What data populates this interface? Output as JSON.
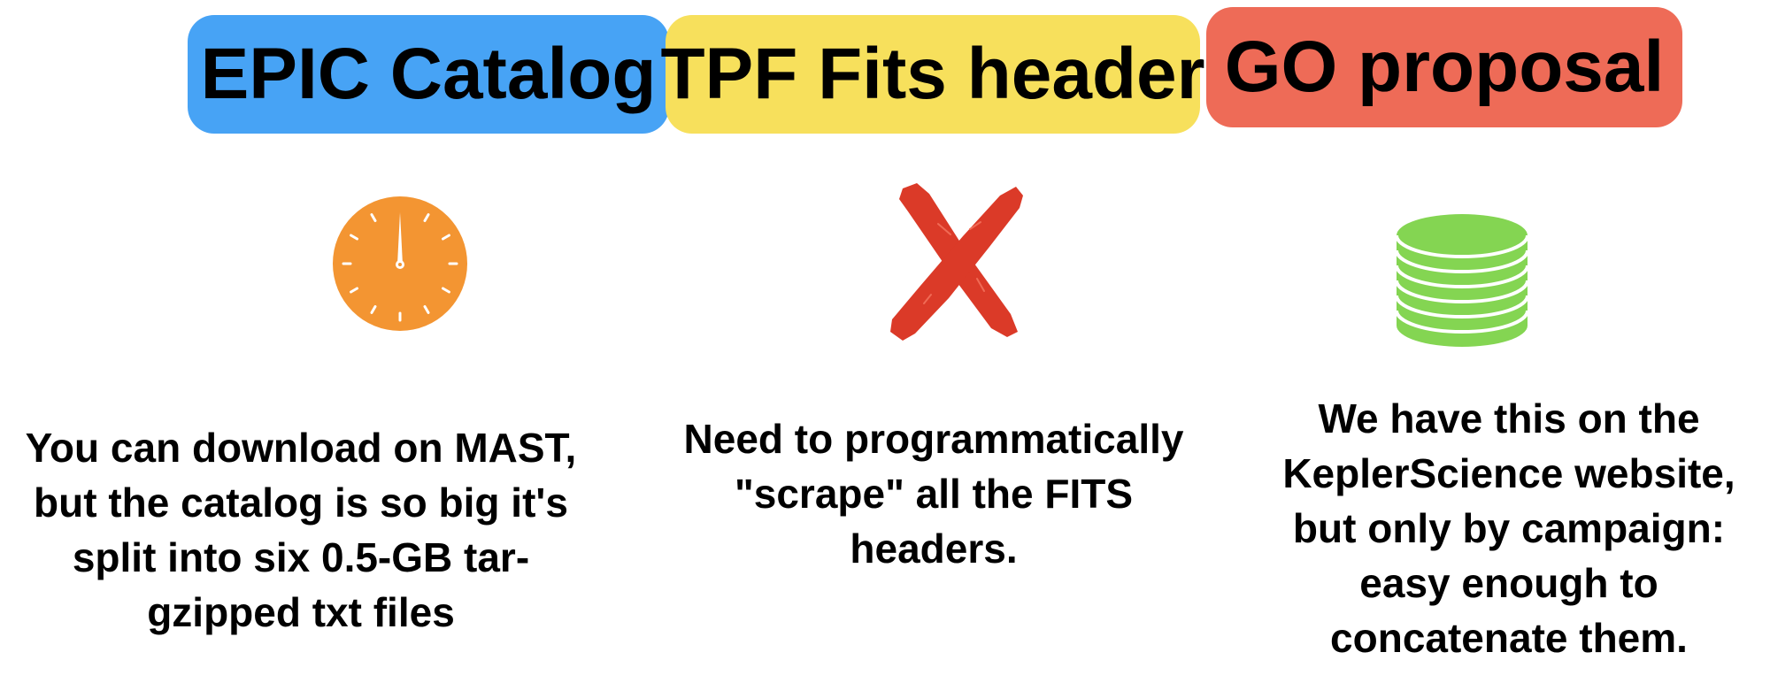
{
  "columns": [
    {
      "title": "EPIC Catalog",
      "title_color": "#47A3F5",
      "icon": "stopwatch-icon",
      "icon_color": "#F39532",
      "description": "You can download on MAST, but the catalog is so big it's split into six 0.5-GB tar-gzipped txt files"
    },
    {
      "title": "TPF Fits header",
      "title_color": "#F7E05C",
      "icon": "cross-icon",
      "icon_color": "#DB3A28",
      "description": "Need to programmatically \"scrape\" all the FITS headers."
    },
    {
      "title": "GO proposal",
      "title_color": "#EE6B57",
      "icon": "database-icon",
      "icon_color": "#84D552",
      "description": "We have this on the KeplerScience website, but only by campaign: easy enough to concatenate them."
    }
  ]
}
